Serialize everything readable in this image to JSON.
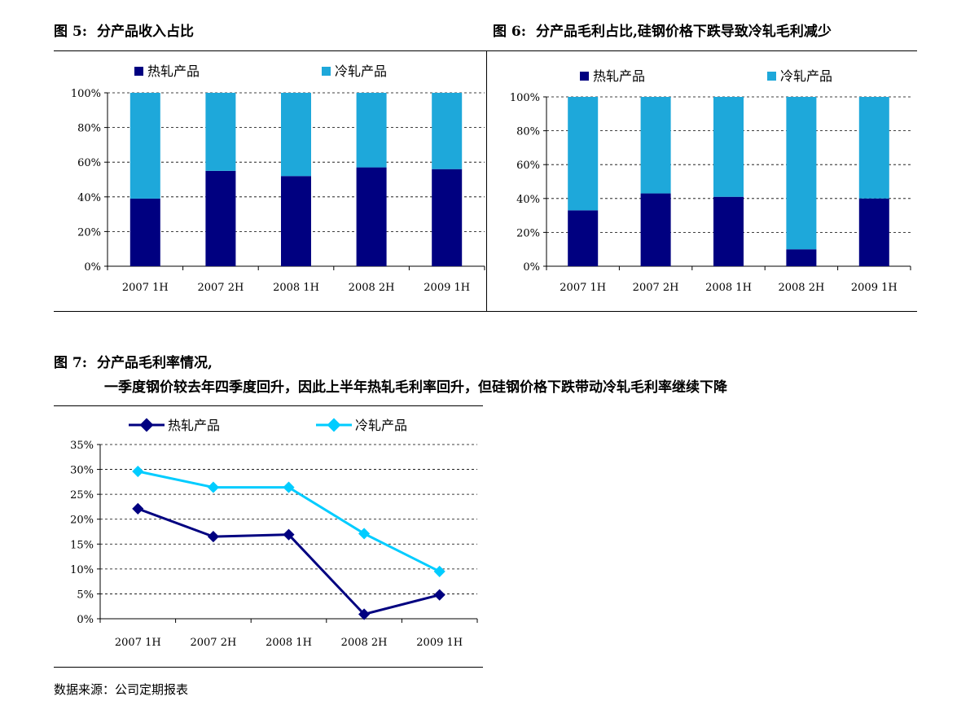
{
  "figures": [
    {
      "label": "图 5:",
      "title": "分产品收入占比",
      "chart_data": {
        "type": "bar",
        "stacked": true,
        "categories": [
          "2007 1H",
          "2007 2H",
          "2008 1H",
          "2008 2H",
          "2009 1H"
        ],
        "series": [
          {
            "name": "热轧产品",
            "color": "#000080",
            "values": [
              39,
              55,
              52,
              57,
              56
            ]
          },
          {
            "name": "冷轧产品",
            "color": "#1EA8DA",
            "values": [
              61,
              45,
              48,
              43,
              44
            ]
          }
        ],
        "yticks": [
          "0%",
          "20%",
          "40%",
          "60%",
          "80%",
          "100%"
        ],
        "ylim": [
          0,
          100
        ],
        "grid": true,
        "legend": "top"
      }
    },
    {
      "label": "图 6:",
      "title": "分产品毛利占比,硅钢价格下跌导致冷轧毛利减少",
      "chart_data": {
        "type": "bar",
        "stacked": true,
        "categories": [
          "2007 1H",
          "2007 2H",
          "2008 1H",
          "2008 2H",
          "2009 1H"
        ],
        "series": [
          {
            "name": "热轧产品",
            "color": "#000080",
            "values": [
              33,
              43,
              41,
              10,
              40
            ]
          },
          {
            "name": "冷轧产品",
            "color": "#1EA8DA",
            "values": [
              67,
              57,
              59,
              90,
              60
            ]
          }
        ],
        "yticks": [
          "0%",
          "20%",
          "40%",
          "60%",
          "80%",
          "100%"
        ],
        "ylim": [
          0,
          100
        ],
        "grid": true,
        "legend": "top"
      }
    },
    {
      "label": "图 7:",
      "title": "分产品毛利率情况,",
      "subtitle": "一季度钢价较去年四季度回升，因此上半年热轧毛利率回升，但硅钢价格下跌带动冷轧毛利率继续下降",
      "chart_data": {
        "type": "line",
        "categories": [
          "2007 1H",
          "2007 2H",
          "2008 1H",
          "2008 2H",
          "2009 1H"
        ],
        "series": [
          {
            "name": "热轧产品",
            "color": "#000080",
            "values": [
              22.1,
              16.5,
              16.9,
              0.9,
              4.8
            ]
          },
          {
            "name": "冷轧产品",
            "color": "#00CCFF",
            "values": [
              29.6,
              26.4,
              26.4,
              17.1,
              9.5
            ]
          }
        ],
        "yticks": [
          "0%",
          "5%",
          "10%",
          "15%",
          "20%",
          "25%",
          "30%",
          "35%"
        ],
        "ylim": [
          0,
          35
        ],
        "grid": true,
        "legend": "top"
      }
    }
  ],
  "source": "数据来源：公司定期报表"
}
